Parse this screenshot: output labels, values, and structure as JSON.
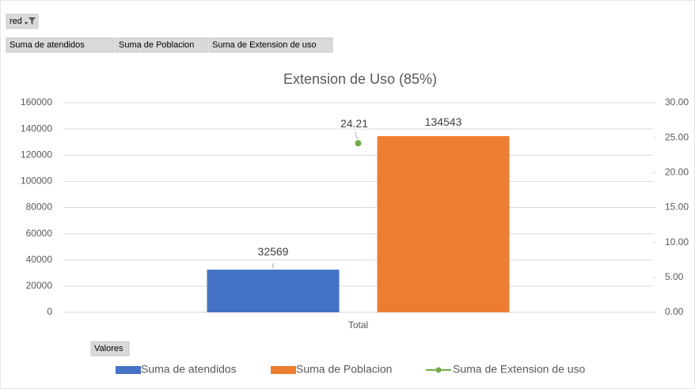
{
  "chart_data": {
    "type": "bar",
    "title": "Extension de Uso (85%)",
    "filter_field": "red",
    "values_button": "Valores",
    "categories": [
      "Total"
    ],
    "series": [
      {
        "name": "Suma de atendidos",
        "color": "#4472c4",
        "values": [
          32569
        ],
        "axis": "y"
      },
      {
        "name": "Suma de Poblacion",
        "color": "#ed7d31",
        "values": [
          134543
        ],
        "axis": "y"
      },
      {
        "name": "Suma de Extension de uso",
        "color": "#70ad47",
        "values": [
          24.21
        ],
        "axis": "y2",
        "type": "line"
      }
    ],
    "ylim": [
      0,
      160000
    ],
    "yticks": [
      0,
      20000,
      40000,
      60000,
      80000,
      100000,
      120000,
      140000,
      160000
    ],
    "y2lim": [
      0,
      30
    ],
    "y2ticks": [
      {
        "value": 0,
        "label": "0.00"
      },
      {
        "value": 5,
        "label": "5.00"
      },
      {
        "value": 10,
        "label": "10.00"
      },
      {
        "value": 15,
        "label": "15.00"
      },
      {
        "value": 20,
        "label": "20.00"
      },
      {
        "value": 25,
        "label": "25.00"
      },
      {
        "value": 30,
        "label": "30.00"
      }
    ],
    "grid": true,
    "data_labels": true,
    "legend": "bottom"
  }
}
